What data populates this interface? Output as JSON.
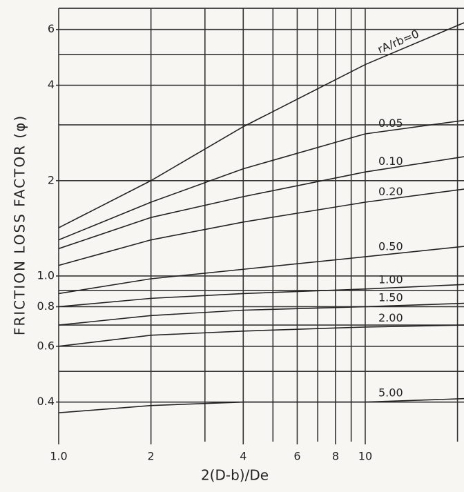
{
  "chart_data": {
    "type": "line",
    "x_label": "2(D-b)/De",
    "y_label": "FRICTION LOSS FACTOR (φ)",
    "x": [
      1,
      2,
      4,
      10,
      21
    ],
    "series": [
      {
        "name": "rA/rb=0",
        "color": "#222",
        "values": [
          1.42,
          2.0,
          2.96,
          4.65,
          6.3
        ]
      },
      {
        "name": "0.05",
        "color": "#222",
        "values": [
          1.3,
          1.71,
          2.18,
          2.81,
          3.1
        ]
      },
      {
        "name": "0.10",
        "color": "#222",
        "values": [
          1.22,
          1.53,
          1.78,
          2.13,
          2.38
        ]
      },
      {
        "name": "0.20",
        "color": "#222",
        "values": [
          1.08,
          1.3,
          1.48,
          1.71,
          1.88
        ]
      },
      {
        "name": "0.50",
        "color": "#222",
        "values": [
          0.88,
          0.98,
          1.05,
          1.15,
          1.24
        ]
      },
      {
        "name": "1.00",
        "color": "#222",
        "values": [
          0.8,
          0.85,
          0.88,
          0.91,
          0.94
        ]
      },
      {
        "name": "1.50",
        "color": "#222",
        "values": [
          0.7,
          0.75,
          0.78,
          0.8,
          0.82
        ]
      },
      {
        "name": "2.00",
        "color": "#222",
        "values": [
          0.6,
          0.65,
          0.67,
          0.69,
          0.7
        ]
      },
      {
        "name": "5.00",
        "color": "#222",
        "values": [
          0.37,
          0.39,
          0.4,
          0.4,
          0.41
        ]
      }
    ],
    "log_x": true,
    "log_y": true,
    "xlim": [
      1,
      21
    ],
    "ylim": [
      0.3,
      7
    ],
    "xticks": [
      {
        "value": 1,
        "label": "1.0"
      },
      2,
      4,
      6,
      8,
      10
    ],
    "yticks": [
      0.4,
      0.6,
      0.8,
      {
        "value": 1,
        "label": "1.0"
      },
      2,
      4,
      6
    ],
    "x_grid_lines": [
      1,
      2,
      3,
      4,
      5,
      6,
      7,
      8,
      9,
      10,
      20
    ],
    "y_grid_lines": [
      0.4,
      0.5,
      0.6,
      0.7,
      0.8,
      0.9,
      1,
      2,
      3,
      4,
      5,
      6,
      7
    ],
    "grid": true
  }
}
